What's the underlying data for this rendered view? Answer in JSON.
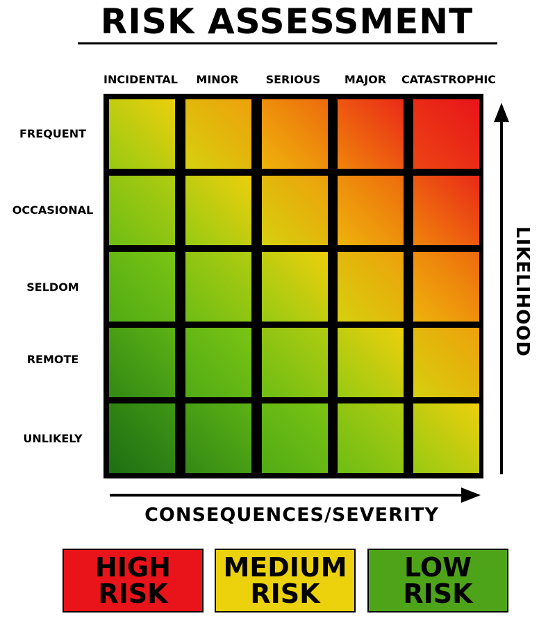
{
  "title": "RISK ASSESSMENT",
  "severity_levels": [
    "INCIDENTAL",
    "MINOR",
    "SERIOUS",
    "MAJOR",
    "CATASTROPHIC"
  ],
  "likelihood_levels": [
    "FREQUENT",
    "OCCASIONAL",
    "SELDOM",
    "REMOTE",
    "UNLIKELY"
  ],
  "y_axis_label": "LIKELIHOOD",
  "x_axis_label": "CONSEQUENCES/SEVERITY",
  "colors": {
    "high": "#e8141a",
    "medium": "#ecd20c",
    "low": "#4ea418",
    "gridline": "#000000"
  },
  "legend": [
    {
      "line1": "HIGH",
      "line2": "RISK",
      "color": "#e8141a"
    },
    {
      "line1": "MEDIUM",
      "line2": "RISK",
      "color": "#ecd20c"
    },
    {
      "line1": "LOW",
      "line2": "RISK",
      "color": "#4ea418"
    }
  ]
}
